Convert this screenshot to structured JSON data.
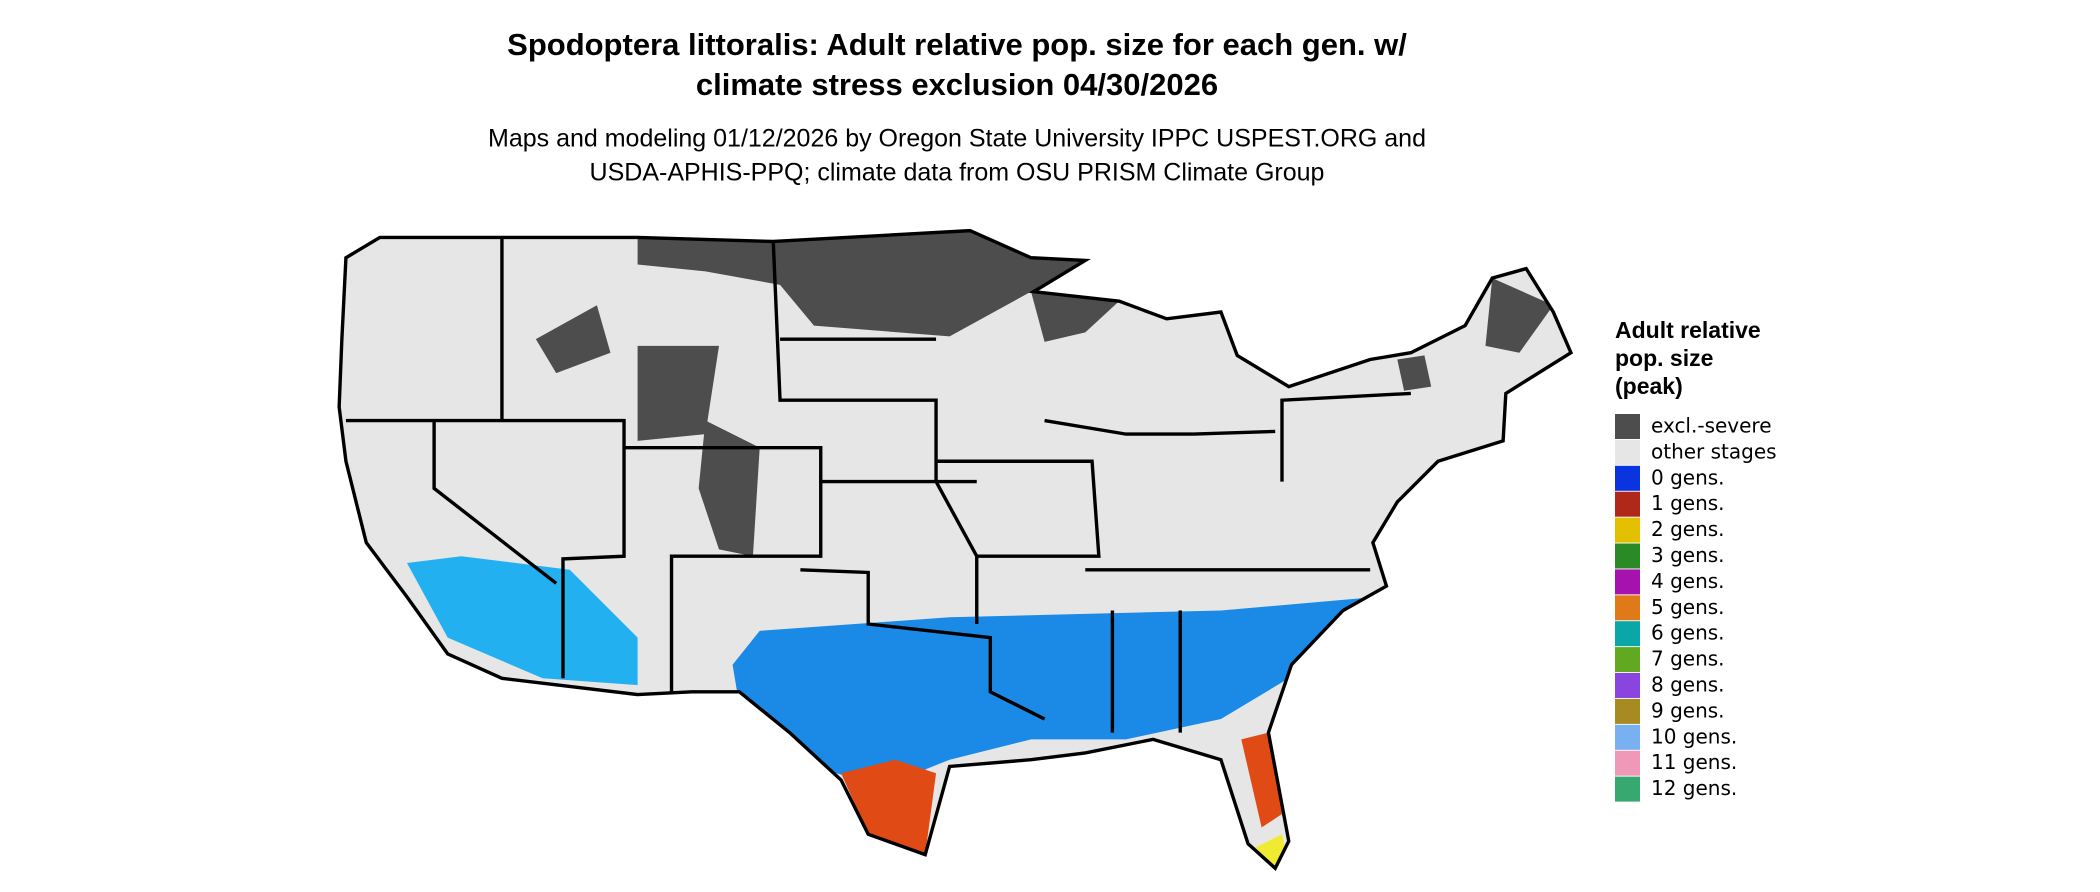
{
  "title": "Spodoptera littoralis: Adult relative pop. size for each gen. w/ climate stress exclusion 04/30/2026",
  "subtitle": [
    "Maps and modeling 01/12/2026 by Oregon State University IPPC USPEST.ORG and",
    "USDA-APHIS-PPQ; climate data from OSU PRISM Climate Group"
  ],
  "legend": {
    "title": "Adult relative pop. size (peak)",
    "items": [
      {
        "name": "excl.-severe",
        "color": "#4d4d4d"
      },
      {
        "name": "other stages",
        "color": "#e6e6e6"
      },
      {
        "name": "0 gens.",
        "color": "#0a34e0"
      },
      {
        "name": "1 gens.",
        "color": "#b0281a"
      },
      {
        "name": "2 gens.",
        "color": "#e2c000"
      },
      {
        "name": "3 gens.",
        "color": "#2a8a26"
      },
      {
        "name": "4 gens.",
        "color": "#a612ae"
      },
      {
        "name": "5 gens.",
        "color": "#e07a18"
      },
      {
        "name": "6 gens.",
        "color": "#0aa6a8"
      },
      {
        "name": "7 gens.",
        "color": "#62a820"
      },
      {
        "name": "8 gens.",
        "color": "#8a44e0"
      },
      {
        "name": "9 gens.",
        "color": "#a88a22"
      },
      {
        "name": "10 gens.",
        "color": "#78b0f0"
      },
      {
        "name": "11 gens.",
        "color": "#f098b8"
      },
      {
        "name": "12 gens.",
        "color": "#36a870"
      }
    ]
  }
}
